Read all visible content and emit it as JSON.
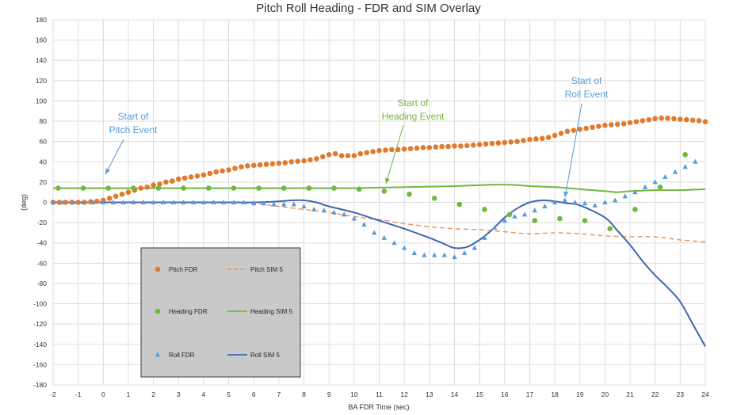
{
  "chart_data": {
    "type": "scatter",
    "title": "Pitch Roll Heading - FDR and SIM Overlay",
    "xlabel": "BA FDR Time (sec)",
    "ylabel": "(deg)",
    "xlim": [
      -2,
      24
    ],
    "ylim": [
      -180,
      180
    ],
    "xticks": [
      -2,
      -1,
      0,
      1,
      2,
      3,
      4,
      5,
      6,
      7,
      8,
      9,
      10,
      11,
      12,
      13,
      14,
      15,
      16,
      17,
      18,
      19,
      20,
      21,
      22,
      23,
      24
    ],
    "yticks": [
      -180,
      -160,
      -140,
      -120,
      -100,
      -80,
      -60,
      -40,
      -20,
      0,
      20,
      40,
      60,
      80,
      100,
      120,
      140,
      160,
      180
    ],
    "grid": true,
    "series": [
      {
        "name": "Pitch FDR",
        "kind": "markers",
        "marker": "circle",
        "color": "#E07A2E",
        "x": [
          -2,
          -1.75,
          -1.5,
          -1.25,
          -1,
          -0.75,
          -0.5,
          -0.25,
          0,
          0.25,
          0.5,
          0.75,
          1,
          1.25,
          1.5,
          1.75,
          2,
          2.25,
          2.5,
          2.75,
          3,
          3.25,
          3.5,
          3.75,
          4,
          4.25,
          4.5,
          4.75,
          5,
          5.25,
          5.5,
          5.75,
          6,
          6.25,
          6.5,
          6.75,
          7,
          7.25,
          7.5,
          7.75,
          8,
          8.25,
          8.5,
          8.75,
          9,
          9.25,
          9.5,
          9.75,
          10,
          10.25,
          10.5,
          10.75,
          11,
          11.25,
          11.5,
          11.75,
          12,
          12.25,
          12.5,
          12.75,
          13,
          13.25,
          13.5,
          13.75,
          14,
          14.25,
          14.5,
          14.75,
          15,
          15.25,
          15.5,
          15.75,
          16,
          16.25,
          16.5,
          16.75,
          17,
          17.25,
          17.5,
          17.75,
          18,
          18.25,
          18.5,
          18.75,
          19,
          19.25,
          19.5,
          19.75,
          20,
          20.25,
          20.5,
          20.75,
          21,
          21.25,
          21.5,
          21.75,
          22,
          22.25,
          22.5,
          22.75,
          23,
          23.25,
          23.5,
          23.75,
          24
        ],
        "y": [
          0,
          0,
          0,
          0,
          0,
          0,
          0.5,
          1,
          2,
          4,
          6,
          8,
          10,
          12,
          14,
          15,
          17,
          18,
          20,
          21,
          23,
          24,
          25,
          26,
          27,
          28.5,
          30,
          31,
          32,
          33.5,
          35,
          36,
          36.5,
          37,
          37.5,
          38,
          38.5,
          39,
          40,
          40.5,
          41,
          42,
          43,
          45,
          47,
          48,
          46,
          46,
          46,
          48,
          49,
          50,
          51,
          51.5,
          52,
          52,
          52.5,
          53,
          53.5,
          54,
          54,
          54.5,
          55,
          55,
          55.5,
          55.5,
          56,
          56.5,
          57,
          57.5,
          58,
          58.5,
          59,
          59.5,
          60,
          61,
          62,
          62.5,
          63,
          64,
          66,
          68,
          70,
          71,
          72,
          73,
          74,
          75,
          76,
          76.5,
          77,
          77.5,
          78.5,
          79.5,
          80.5,
          81.5,
          82.5,
          83,
          83,
          82.5,
          82,
          81.5,
          81,
          80.5,
          79.5
        ]
      },
      {
        "name": "Pitch SIM 5",
        "kind": "line",
        "dash": "dashed",
        "color": "#E9935A",
        "x": [
          -2,
          0,
          2,
          4,
          5,
          6,
          7,
          8,
          9,
          10,
          11,
          12,
          13,
          14,
          15,
          16,
          17,
          18,
          19,
          20,
          21,
          22,
          23,
          24
        ],
        "y": [
          0,
          0,
          0,
          0,
          0,
          -1,
          -4,
          -7,
          -10,
          -14,
          -17,
          -21,
          -24,
          -26,
          -27,
          -29,
          -31,
          -30,
          -31,
          -33,
          -34,
          -34,
          -37,
          -39
        ]
      },
      {
        "name": "Heading FDR",
        "kind": "markers",
        "marker": "circle",
        "color": "#70B83E",
        "x": [
          -1.8,
          -0.8,
          0.2,
          1.2,
          2.2,
          3.2,
          4.2,
          5.2,
          6.2,
          7.2,
          8.2,
          9.2,
          10.2,
          11.2,
          12.2,
          13.2,
          14.2,
          15.2,
          16.2,
          17.2,
          18.2,
          19.2,
          20.2,
          21.2,
          22.2,
          23.2
        ],
        "y": [
          14,
          14,
          14,
          14,
          14,
          14,
          14,
          14,
          14,
          14,
          14,
          14,
          13,
          11,
          8,
          4,
          -2,
          -7,
          -12,
          -18,
          -16,
          -18,
          -26,
          -7,
          15,
          47
        ]
      },
      {
        "name": "Heading SIM 5",
        "kind": "line",
        "dash": "solid",
        "color": "#70B83E",
        "x": [
          -2,
          0,
          2,
          4,
          6,
          8,
          10,
          11,
          12,
          13,
          14,
          15,
          15.8,
          16.5,
          17,
          18,
          19,
          20,
          20.5,
          21,
          22,
          23,
          24
        ],
        "y": [
          14,
          14,
          14,
          14,
          14,
          14,
          14,
          14.5,
          15,
          15.5,
          16,
          17,
          17.5,
          17,
          16,
          15,
          13,
          11,
          10,
          11,
          12,
          12,
          13
        ]
      },
      {
        "name": "Roll FDR",
        "kind": "markers",
        "marker": "triangle",
        "color": "#5B9BD5",
        "x": [
          -2,
          -1.6,
          -1.2,
          -0.8,
          -0.4,
          0,
          0.4,
          0.8,
          1.2,
          1.6,
          2,
          2.4,
          2.8,
          3.2,
          3.6,
          4,
          4.4,
          4.8,
          5.2,
          5.6,
          6,
          6.4,
          6.8,
          7.2,
          7.6,
          8,
          8.4,
          8.8,
          9.2,
          9.6,
          10,
          10.4,
          10.8,
          11.2,
          11.6,
          12,
          12.4,
          12.8,
          13.2,
          13.6,
          14,
          14.4,
          14.8,
          15.2,
          15.6,
          16,
          16.4,
          16.8,
          17.2,
          17.6,
          18,
          18.4,
          18.8,
          19.2,
          19.6,
          20,
          20.4,
          20.8,
          21.2,
          21.6,
          22,
          22.4,
          22.8,
          23.2,
          23.6
        ],
        "y": [
          0,
          0,
          0,
          0,
          0,
          0,
          0,
          0,
          0,
          0,
          0,
          0,
          0,
          0,
          0,
          0,
          0,
          0,
          0,
          0,
          -1,
          -1,
          -2,
          -2,
          -2,
          -4,
          -7,
          -8,
          -10,
          -12,
          -16,
          -22,
          -30,
          -35,
          -40,
          -45,
          -50,
          -52,
          -52,
          -52,
          -54,
          -50,
          -45,
          -35,
          -25,
          -18,
          -14,
          -12,
          -8,
          -4,
          0,
          2,
          0,
          -1,
          -3,
          0,
          2,
          6,
          10,
          15,
          20,
          25,
          30,
          35,
          40
        ]
      },
      {
        "name": "Roll SIM 5",
        "kind": "line",
        "dash": "solid",
        "color": "#3E67B1",
        "x": [
          -2,
          0,
          2,
          3,
          4,
          5,
          6,
          7,
          7.5,
          8,
          8.5,
          9,
          10,
          11,
          12,
          13,
          13.5,
          14,
          14.5,
          15,
          15.5,
          16,
          16.5,
          17,
          17.5,
          18,
          18.5,
          19,
          20,
          20.5,
          21,
          21.5,
          22,
          22.5,
          23,
          23.5,
          24
        ],
        "y": [
          0,
          0,
          0,
          0,
          0,
          0,
          0,
          1,
          2,
          2,
          0,
          -4,
          -10,
          -18,
          -26,
          -35,
          -40,
          -45,
          -44,
          -37,
          -27,
          -15,
          -6,
          0,
          2,
          1,
          -1,
          -3,
          -15,
          -28,
          -42,
          -58,
          -72,
          -84,
          -98,
          -120,
          -142
        ]
      }
    ],
    "annotations": [
      {
        "text": [
          "Start of",
          "Pitch Event"
        ],
        "color": "#5B9BD5",
        "x": 0.2,
        "y": 0
      },
      {
        "text": [
          "Start of",
          "Heading Event"
        ],
        "color": "#70B83E",
        "x": 11.5,
        "y": 17
      },
      {
        "text": [
          "Start of",
          "Roll Event"
        ],
        "color": "#5B9BD5",
        "x": 18.5,
        "y": 2
      }
    ],
    "legend": {
      "position": "bottom-left",
      "entries": [
        "Pitch FDR",
        "Pitch SIM 5",
        "Heading FDR",
        "Heading SIM 5",
        "Roll FDR",
        "Roll SIM 5"
      ]
    }
  }
}
